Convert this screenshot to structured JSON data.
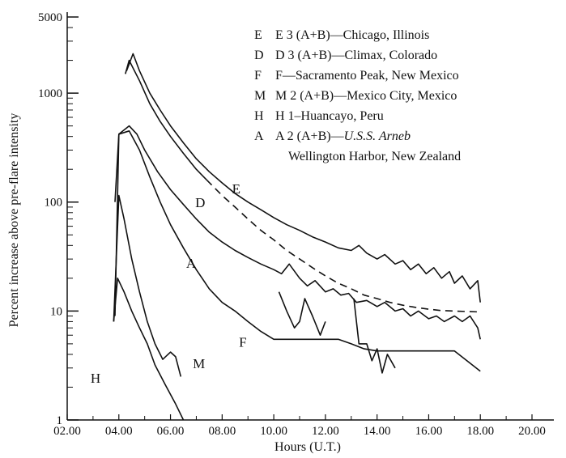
{
  "chart_data": {
    "type": "line",
    "xlabel": "Hours (U.T.)",
    "ylabel": "Percent increase above pre-flare intensity",
    "xlim": [
      2,
      20
    ],
    "ylim": [
      1,
      5000
    ],
    "y_scale": "log",
    "grid": false,
    "legend_position": "top-right",
    "x_ticks": [
      "02.00",
      "04.00",
      "06.00",
      "08.00",
      "10.00",
      "12.00",
      "14.00",
      "16.00",
      "18.00",
      "20.00"
    ],
    "y_ticks": [
      {
        "value": 1,
        "label": "1"
      },
      {
        "value": 10,
        "label": "10"
      },
      {
        "value": 100,
        "label": "100"
      },
      {
        "value": 1000,
        "label": "1000"
      },
      {
        "value": 5000,
        "label": "5000"
      }
    ],
    "legend": [
      {
        "key": "E",
        "text": "E 3 (A+B)—Chicago, Illinois"
      },
      {
        "key": "D",
        "text": "D 3 (A+B)—Climax, Colorado"
      },
      {
        "key": "F",
        "text": "F—Sacramento Peak, New Mexico"
      },
      {
        "key": "M",
        "text": "M 2 (A+B)—Mexico City, Mexico"
      },
      {
        "key": "H",
        "text": "H 1–Huancayo, Peru"
      },
      {
        "key": "A",
        "text": "A 2 (A+B)—",
        "italic": "U.S.S. Arneb",
        "line2": "Wellington Harbor, New Zealand"
      }
    ],
    "series": [
      {
        "key": "E",
        "style": "solid",
        "points": [
          [
            4.3,
            1600
          ],
          [
            4.55,
            2300
          ],
          [
            4.8,
            1600
          ],
          [
            5.2,
            1000
          ],
          [
            5.6,
            700
          ],
          [
            6.0,
            500
          ],
          [
            6.5,
            350
          ],
          [
            7.0,
            250
          ],
          [
            7.5,
            190
          ],
          [
            8.0,
            150
          ],
          [
            8.5,
            120
          ],
          [
            9.0,
            100
          ],
          [
            9.5,
            85
          ],
          [
            10.0,
            72
          ],
          [
            10.5,
            62
          ],
          [
            11.0,
            55
          ],
          [
            11.5,
            48
          ],
          [
            12.0,
            43
          ],
          [
            12.5,
            38
          ],
          [
            13.0,
            36
          ],
          [
            13.3,
            40
          ],
          [
            13.6,
            34
          ],
          [
            14.0,
            30
          ],
          [
            14.3,
            33
          ],
          [
            14.7,
            27
          ],
          [
            15.0,
            29
          ],
          [
            15.3,
            24
          ],
          [
            15.6,
            27
          ],
          [
            15.9,
            22
          ],
          [
            16.2,
            25
          ],
          [
            16.5,
            20
          ],
          [
            16.8,
            23
          ],
          [
            17.0,
            18
          ],
          [
            17.3,
            21
          ],
          [
            17.6,
            16
          ],
          [
            17.9,
            19
          ],
          [
            18.0,
            12
          ]
        ]
      },
      {
        "key": "D",
        "style": "solid",
        "points": [
          [
            4.25,
            1500
          ],
          [
            4.4,
            2000
          ],
          [
            4.8,
            1300
          ],
          [
            5.2,
            800
          ],
          [
            5.6,
            550
          ],
          [
            6.0,
            400
          ],
          [
            6.5,
            280
          ],
          [
            7.0,
            200
          ],
          [
            7.4,
            160
          ]
        ]
      },
      {
        "key": "D",
        "style": "dashed",
        "points": [
          [
            7.4,
            160
          ],
          [
            8.0,
            115
          ],
          [
            8.5,
            90
          ],
          [
            9.0,
            70
          ],
          [
            9.5,
            55
          ],
          [
            10.0,
            45
          ],
          [
            10.5,
            36
          ],
          [
            11.0,
            30
          ],
          [
            11.5,
            25
          ],
          [
            12.0,
            21
          ],
          [
            12.5,
            18
          ],
          [
            13.0,
            16
          ],
          [
            13.5,
            14
          ],
          [
            14.0,
            13
          ],
          [
            14.5,
            12
          ],
          [
            15.0,
            11.3
          ],
          [
            15.5,
            10.8
          ],
          [
            16.0,
            10.4
          ],
          [
            16.5,
            10.1
          ],
          [
            17.0,
            10
          ],
          [
            17.5,
            9.9
          ],
          [
            18.0,
            9.8
          ]
        ]
      },
      {
        "key": "A",
        "style": "solid",
        "points": [
          [
            3.85,
            100
          ],
          [
            4.0,
            420
          ],
          [
            4.4,
            500
          ],
          [
            4.7,
            420
          ],
          [
            5.0,
            300
          ],
          [
            5.5,
            190
          ],
          [
            6.0,
            130
          ],
          [
            6.5,
            95
          ],
          [
            7.0,
            70
          ],
          [
            7.5,
            53
          ],
          [
            8.0,
            43
          ],
          [
            8.5,
            36
          ],
          [
            9.0,
            31
          ],
          [
            9.5,
            27
          ],
          [
            10.0,
            24
          ],
          [
            10.3,
            22
          ],
          [
            10.6,
            27
          ],
          [
            11.0,
            20
          ],
          [
            11.3,
            17
          ],
          [
            11.6,
            19
          ],
          [
            12.0,
            15
          ],
          [
            12.3,
            16
          ],
          [
            12.6,
            14
          ],
          [
            12.9,
            14.5
          ],
          [
            13.2,
            12
          ],
          [
            13.6,
            12.5
          ],
          [
            14.0,
            11
          ],
          [
            14.3,
            12
          ],
          [
            14.7,
            10
          ],
          [
            15.0,
            10.5
          ],
          [
            15.3,
            9
          ],
          [
            15.6,
            10
          ],
          [
            16.0,
            8.5
          ],
          [
            16.3,
            9
          ],
          [
            16.6,
            8
          ],
          [
            17.0,
            9
          ],
          [
            17.3,
            8
          ],
          [
            17.6,
            9
          ],
          [
            17.9,
            7
          ],
          [
            18.0,
            5.5
          ]
        ]
      },
      {
        "key": "F",
        "style": "solid",
        "points": [
          [
            3.85,
            9
          ],
          [
            4.0,
            420
          ],
          [
            4.4,
            450
          ],
          [
            4.8,
            300
          ],
          [
            5.2,
            170
          ],
          [
            5.6,
            100
          ],
          [
            6.0,
            62
          ],
          [
            6.5,
            38
          ],
          [
            7.0,
            24
          ],
          [
            7.5,
            16
          ],
          [
            8.0,
            12
          ],
          [
            8.5,
            10
          ],
          [
            9.0,
            8
          ],
          [
            9.5,
            6.5
          ],
          [
            10.0,
            5.5
          ],
          [
            11.0,
            5.5
          ],
          [
            12.0,
            5.5
          ],
          [
            12.5,
            5.5
          ],
          [
            13.0,
            5
          ],
          [
            13.5,
            4.5
          ],
          [
            14.0,
            4.3
          ],
          [
            15.0,
            4.3
          ],
          [
            16.0,
            4.3
          ],
          [
            17.0,
            4.3
          ],
          [
            18.0,
            2.8
          ]
        ]
      },
      {
        "key": "M",
        "style": "solid",
        "points": [
          [
            3.8,
            8
          ],
          [
            4.0,
            115
          ],
          [
            4.2,
            70
          ],
          [
            4.5,
            30
          ],
          [
            4.8,
            15
          ],
          [
            5.1,
            8
          ],
          [
            5.4,
            5
          ],
          [
            5.7,
            3.6
          ],
          [
            6.0,
            4.2
          ],
          [
            6.2,
            3.8
          ],
          [
            6.4,
            2.5
          ]
        ]
      },
      {
        "key": "H",
        "style": "solid",
        "points": [
          [
            3.8,
            8
          ],
          [
            3.95,
            20
          ],
          [
            4.2,
            15
          ],
          [
            4.5,
            10
          ],
          [
            4.8,
            7
          ],
          [
            5.1,
            5
          ],
          [
            5.4,
            3.2
          ],
          [
            5.8,
            2.1
          ],
          [
            6.2,
            1.4
          ],
          [
            6.5,
            1.0
          ]
        ]
      },
      {
        "key": "",
        "style": "solid",
        "points": [
          [
            10.2,
            15
          ],
          [
            10.5,
            10
          ],
          [
            10.8,
            7
          ],
          [
            11.0,
            8
          ],
          [
            11.2,
            13
          ],
          [
            11.5,
            9
          ],
          [
            11.8,
            6
          ],
          [
            12.0,
            8
          ]
        ]
      },
      {
        "key": "",
        "style": "solid",
        "points": [
          [
            13.1,
            13
          ],
          [
            13.3,
            5
          ],
          [
            13.6,
            5
          ],
          [
            13.8,
            3.5
          ],
          [
            14.0,
            4.5
          ],
          [
            14.2,
            2.7
          ],
          [
            14.4,
            4
          ],
          [
            14.7,
            3
          ]
        ]
      }
    ],
    "curve_labels": [
      {
        "text": "E",
        "value_pos": [
          8.55,
          120
        ]
      },
      {
        "text": "D",
        "value_pos": [
          7.15,
          90
        ]
      },
      {
        "text": "A",
        "value_pos": [
          6.8,
          25
        ]
      },
      {
        "text": "F",
        "value_pos": [
          8.8,
          4.7
        ]
      },
      {
        "text": "M",
        "value_pos": [
          7.1,
          3.0
        ]
      },
      {
        "text": "H",
        "value_pos": [
          3.1,
          2.2
        ]
      }
    ]
  }
}
